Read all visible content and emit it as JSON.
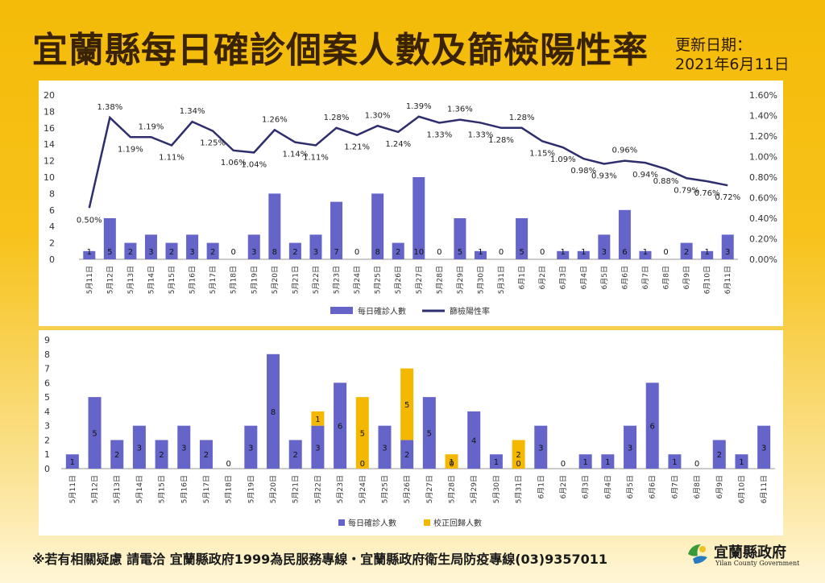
{
  "header": {
    "title": "宜蘭縣每日確診個案人數及篩檢陽性率",
    "update_label": "更新日期：",
    "update_date": "2021年6月11日"
  },
  "footer": {
    "text": "※若有相關疑慮 請電洽 宜蘭縣政府1999為民服務專線・宜蘭縣政府衛生局防疫專線(03)9357011"
  },
  "logo": {
    "name": "宜蘭縣政府",
    "english": "Yilan County Government"
  },
  "colors": {
    "bar": "#6565c9",
    "line": "#2e2e6e",
    "corrected": "#f5b800"
  },
  "chart_data": [
    {
      "type": "bar+line",
      "categories": [
        "5月11日",
        "5月12日",
        "5月13日",
        "5月14日",
        "5月15日",
        "5月16日",
        "5月17日",
        "5月18日",
        "5月19日",
        "5月20日",
        "5月21日",
        "5月22日",
        "5月23日",
        "5月24日",
        "5月25日",
        "5月26日",
        "5月27日",
        "5月28日",
        "5月29日",
        "5月30日",
        "5月31日",
        "6月1日",
        "6月2日",
        "6月3日",
        "6月4日",
        "6月5日",
        "6月6日",
        "6月7日",
        "6月8日",
        "6月9日",
        "6月10日",
        "6月11日"
      ],
      "series": [
        {
          "name": "每日確診人數",
          "type": "bar",
          "axis": "left",
          "values": [
            1,
            5,
            2,
            3,
            2,
            3,
            2,
            0,
            3,
            8,
            2,
            3,
            7,
            0,
            8,
            2,
            10,
            0,
            5,
            1,
            0,
            5,
            0,
            1,
            1,
            3,
            6,
            1,
            0,
            2,
            1,
            3
          ]
        },
        {
          "name": "篩檢陽性率",
          "type": "line",
          "axis": "right",
          "values": [
            0.5,
            1.38,
            1.19,
            1.19,
            1.11,
            1.34,
            1.25,
            1.06,
            1.04,
            1.26,
            1.14,
            1.11,
            1.28,
            1.21,
            1.3,
            1.24,
            1.39,
            1.33,
            1.36,
            1.33,
            1.28,
            1.28,
            1.15,
            1.09,
            0.98,
            0.93,
            0.96,
            0.94,
            0.88,
            0.79,
            0.76,
            0.72
          ],
          "labels": [
            "0.50%",
            "1.38%",
            "1.19%",
            "1.19%",
            "1.11%",
            "1.34%",
            "1.25%",
            "1.06%",
            "1.04%",
            "1.26%",
            "1.14%",
            "1.11%",
            "1.28%",
            "1.21%",
            "1.30%",
            "1.24%",
            "1.39%",
            "1.33%",
            "1.36%",
            "1.33%",
            "1.28%",
            "1.28%",
            "1.15%",
            "1.09%",
            "0.98%",
            "0.93%",
            "0.96%",
            "0.94%",
            "0.88%",
            "0.79%",
            "0.76%",
            "0.72%"
          ]
        }
      ],
      "ylim": [
        0,
        20
      ],
      "yticks": [
        0,
        2,
        4,
        6,
        8,
        10,
        12,
        14,
        16,
        18,
        20
      ],
      "y2lim": [
        0,
        1.6
      ],
      "y2ticks": [
        "0.00%",
        "0.20%",
        "0.40%",
        "0.60%",
        "0.80%",
        "1.00%",
        "1.20%",
        "1.40%",
        "1.60%"
      ],
      "legend": "bottom"
    },
    {
      "type": "stacked-bar",
      "categories": [
        "5月11日",
        "5月12日",
        "5月13日",
        "5月14日",
        "5月15日",
        "5月16日",
        "5月17日",
        "5月18日",
        "5月19日",
        "5月20日",
        "5月21日",
        "5月22日",
        "5月23日",
        "5月24日",
        "5月25日",
        "5月26日",
        "5月27日",
        "5月28日",
        "5月29日",
        "5月30日",
        "5月31日",
        "6月1日",
        "6月2日",
        "6月3日",
        "6月4日",
        "6月5日",
        "6月6日",
        "6月7日",
        "6月8日",
        "6月9日",
        "6月10日",
        "6月11日"
      ],
      "series": [
        {
          "name": "每日確診人數",
          "values": [
            1,
            5,
            2,
            3,
            2,
            3,
            2,
            0,
            3,
            8,
            2,
            3,
            6,
            0,
            3,
            2,
            5,
            0,
            4,
            1,
            0,
            3,
            0,
            1,
            1,
            3,
            6,
            1,
            0,
            2,
            1,
            3
          ]
        },
        {
          "name": "校正回歸人數",
          "values": [
            0,
            0,
            0,
            0,
            0,
            0,
            0,
            0,
            0,
            0,
            0,
            1,
            0,
            5,
            0,
            5,
            0,
            1,
            0,
            0,
            2,
            0,
            0,
            0,
            0,
            0,
            0,
            0,
            0,
            0,
            0,
            0
          ]
        }
      ],
      "ylim": [
        0,
        9
      ],
      "yticks": [
        0,
        1,
        2,
        3,
        4,
        5,
        6,
        7,
        8,
        9
      ],
      "legend": "bottom"
    }
  ]
}
